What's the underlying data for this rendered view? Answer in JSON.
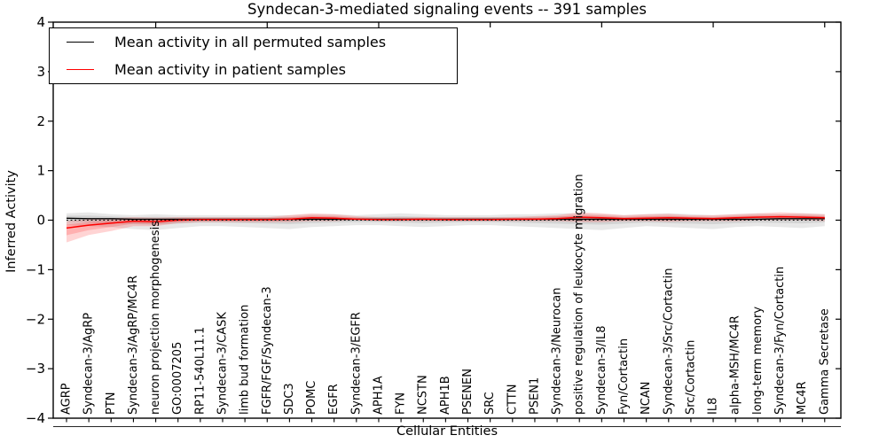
{
  "figure": {
    "title": "Syndecan-3-mediated signaling events -- 391 samples",
    "xlabel": "Cellular Entities",
    "ylabel": "Inferred Activity"
  },
  "legend": {
    "entries": [
      {
        "label": "Mean activity in all permuted samples",
        "color": "#000000"
      },
      {
        "label": "Mean activity in patient samples",
        "color": "#ff0000"
      }
    ]
  },
  "chart_data": {
    "type": "line",
    "title": "Syndecan-3-mediated signaling events -- 391 samples",
    "xlabel": "Cellular Entities",
    "ylabel": "Inferred Activity",
    "ylim": [
      -4,
      4
    ],
    "yticks": [
      4,
      3,
      2,
      1,
      0,
      -1,
      -2,
      -3,
      -4
    ],
    "grid": false,
    "legend_position": "upper left",
    "zero_line": true,
    "categories": [
      "AGRP",
      "Syndecan-3/AgRP",
      "PTN",
      "Syndecan-3/AgRP/MC4R",
      "neuron projection morphogenesis",
      "GO:0007205",
      "RP11-540L11.1",
      "Syndecan-3/CASK",
      "limb bud formation",
      "FGFR/FGF/Syndecan-3",
      "SDC3",
      "POMC",
      "EGFR",
      "Syndecan-3/EGFR",
      "APH1A",
      "FYN",
      "NCSTN",
      "APH1B",
      "PSENEN",
      "SRC",
      "CTTN",
      "PSEN1",
      "Syndecan-3/Neurocan",
      "positive regulation of leukocyte migration",
      "Syndecan-3/IL8",
      "Fyn/Cortactin",
      "NCAN",
      "Syndecan-3/Src/Cortactin",
      "Src/Cortactin",
      "IL8",
      "alpha-MSH/MC4R",
      "long-term memory",
      "Syndecan-3/Fyn/Cortactin",
      "MC4R",
      "Gamma Secretase"
    ],
    "series": [
      {
        "name": "Mean activity in all permuted samples",
        "color": "#000000",
        "line_width": 1.4,
        "band_color": "#000000",
        "band_alpha": 0.09,
        "values": [
          0.04,
          0.03,
          0.03,
          0.02,
          0.02,
          0.02,
          0.02,
          0.02,
          0.02,
          0.02,
          0.02,
          0.02,
          0.02,
          0.02,
          0.02,
          0.02,
          0.02,
          0.02,
          0.02,
          0.02,
          0.02,
          0.02,
          0.02,
          0.02,
          0.02,
          0.02,
          0.02,
          0.02,
          0.02,
          0.02,
          0.02,
          0.02,
          0.03,
          0.03,
          0.03
        ],
        "band_low": [
          -0.1,
          -0.12,
          -0.14,
          -0.18,
          -0.2,
          -0.16,
          -0.12,
          -0.12,
          -0.14,
          -0.16,
          -0.18,
          -0.14,
          -0.12,
          -0.1,
          -0.1,
          -0.12,
          -0.14,
          -0.12,
          -0.1,
          -0.1,
          -0.12,
          -0.14,
          -0.16,
          -0.18,
          -0.2,
          -0.16,
          -0.12,
          -0.14,
          -0.16,
          -0.18,
          -0.14,
          -0.12,
          -0.14,
          -0.16,
          -0.12
        ],
        "band_high": [
          0.14,
          0.16,
          0.12,
          0.1,
          0.12,
          0.1,
          0.1,
          0.1,
          0.1,
          0.1,
          0.1,
          0.12,
          0.12,
          0.1,
          0.12,
          0.14,
          0.12,
          0.1,
          0.1,
          0.1,
          0.12,
          0.12,
          0.14,
          0.14,
          0.12,
          0.1,
          0.12,
          0.14,
          0.12,
          0.1,
          0.12,
          0.14,
          0.12,
          0.14,
          0.12
        ]
      },
      {
        "name": "Mean activity in patient samples",
        "color": "#ff0000",
        "line_width": 1.5,
        "band_color": "#ff0000",
        "band_alpha": 0.17,
        "values": [
          -0.16,
          -0.1,
          -0.06,
          -0.02,
          -0.03,
          0.0,
          0.01,
          0.01,
          0.01,
          0.01,
          0.02,
          0.05,
          0.04,
          0.02,
          0.01,
          0.01,
          0.02,
          0.01,
          0.01,
          0.01,
          0.02,
          0.02,
          0.03,
          0.06,
          0.05,
          0.03,
          0.04,
          0.05,
          0.04,
          0.03,
          0.05,
          0.06,
          0.07,
          0.06,
          0.05
        ],
        "band_low": [
          -0.45,
          -0.3,
          -0.22,
          -0.12,
          -0.12,
          -0.06,
          -0.04,
          -0.04,
          -0.04,
          -0.04,
          -0.04,
          -0.02,
          -0.02,
          0.0,
          -0.02,
          -0.02,
          -0.02,
          -0.02,
          -0.02,
          -0.02,
          -0.02,
          -0.02,
          -0.02,
          -0.04,
          -0.04,
          -0.02,
          -0.02,
          -0.03,
          -0.02,
          -0.02,
          -0.02,
          0.0,
          0.0,
          0.0,
          -0.02
        ],
        "band_high": [
          -0.02,
          0.02,
          0.04,
          0.06,
          0.05,
          0.06,
          0.06,
          0.06,
          0.06,
          0.06,
          0.1,
          0.14,
          0.12,
          0.08,
          0.06,
          0.06,
          0.06,
          0.06,
          0.06,
          0.06,
          0.06,
          0.08,
          0.1,
          0.16,
          0.14,
          0.1,
          0.12,
          0.13,
          0.1,
          0.1,
          0.12,
          0.14,
          0.16,
          0.14,
          0.12
        ]
      }
    ]
  }
}
